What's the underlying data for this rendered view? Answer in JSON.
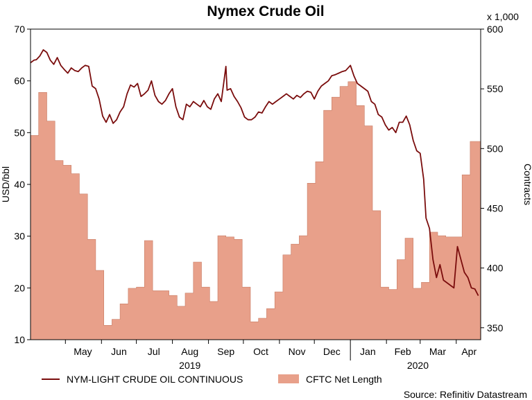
{
  "chart_data": {
    "type": "line+area",
    "title": "Nymex Crude Oil",
    "source": "Source: Refinitiv Datastream",
    "left_axis": {
      "label": "USD/bbl",
      "ylim": [
        10,
        70
      ],
      "ticks": [
        10,
        20,
        30,
        40,
        50,
        60,
        70
      ]
    },
    "right_axis": {
      "label": "Contracts",
      "multiplier_note": "x 1,000",
      "ylim": [
        340,
        600
      ],
      "ticks": [
        350,
        400,
        450,
        500,
        550,
        600
      ]
    },
    "x_axis": {
      "start": "2019-04-01",
      "end": "2020-04-22",
      "month_labels": [
        {
          "label": "May",
          "date": "2019-05-16"
        },
        {
          "label": "Jun",
          "date": "2019-06-16"
        },
        {
          "label": "Jul",
          "date": "2019-07-16"
        },
        {
          "label": "Aug",
          "date": "2019-08-16"
        },
        {
          "label": "Sep",
          "date": "2019-09-16"
        },
        {
          "label": "Oct",
          "date": "2019-10-16"
        },
        {
          "label": "Nov",
          "date": "2019-11-16"
        },
        {
          "label": "Dec",
          "date": "2019-12-16"
        },
        {
          "label": "Jan",
          "date": "2020-01-16"
        },
        {
          "label": "Feb",
          "date": "2020-02-15"
        },
        {
          "label": "Mar",
          "date": "2020-03-16"
        },
        {
          "label": "Apr",
          "date": "2020-04-12"
        }
      ],
      "year_labels": [
        {
          "label": "2019",
          "date": "2019-08-16"
        },
        {
          "label": "2020",
          "date": "2020-02-28"
        }
      ]
    },
    "series": [
      {
        "name": "NYM-LIGHT CRUDE OIL CONTINUOUS",
        "kind": "line",
        "axis": "left",
        "color": "#7a0c0c",
        "x": [
          "2019-04-01",
          "2019-04-04",
          "2019-04-06",
          "2019-04-09",
          "2019-04-12",
          "2019-04-15",
          "2019-04-18",
          "2019-04-21",
          "2019-04-24",
          "2019-04-27",
          "2019-04-30",
          "2019-05-03",
          "2019-05-06",
          "2019-05-09",
          "2019-05-12",
          "2019-05-15",
          "2019-05-18",
          "2019-05-21",
          "2019-05-24",
          "2019-05-27",
          "2019-05-30",
          "2019-06-02",
          "2019-06-05",
          "2019-06-08",
          "2019-06-11",
          "2019-06-14",
          "2019-06-17",
          "2019-06-20",
          "2019-06-23",
          "2019-06-26",
          "2019-06-29",
          "2019-07-02",
          "2019-07-05",
          "2019-07-08",
          "2019-07-11",
          "2019-07-14",
          "2019-07-17",
          "2019-07-20",
          "2019-07-23",
          "2019-07-26",
          "2019-07-29",
          "2019-08-01",
          "2019-08-04",
          "2019-08-07",
          "2019-08-10",
          "2019-08-13",
          "2019-08-16",
          "2019-08-19",
          "2019-08-22",
          "2019-08-25",
          "2019-08-28",
          "2019-08-31",
          "2019-09-03",
          "2019-09-06",
          "2019-09-09",
          "2019-09-12",
          "2019-09-16",
          "2019-09-17",
          "2019-09-20",
          "2019-09-23",
          "2019-09-26",
          "2019-09-29",
          "2019-10-02",
          "2019-10-05",
          "2019-10-08",
          "2019-10-11",
          "2019-10-14",
          "2019-10-17",
          "2019-10-20",
          "2019-10-23",
          "2019-10-26",
          "2019-10-29",
          "2019-11-01",
          "2019-11-04",
          "2019-11-07",
          "2019-11-10",
          "2019-11-13",
          "2019-11-16",
          "2019-11-19",
          "2019-11-22",
          "2019-11-25",
          "2019-11-28",
          "2019-12-01",
          "2019-12-04",
          "2019-12-07",
          "2019-12-10",
          "2019-12-13",
          "2019-12-16",
          "2019-12-19",
          "2019-12-22",
          "2019-12-25",
          "2019-12-28",
          "2020-01-01",
          "2020-01-04",
          "2020-01-07",
          "2020-01-10",
          "2020-01-13",
          "2020-01-16",
          "2020-01-19",
          "2020-01-22",
          "2020-01-25",
          "2020-01-28",
          "2020-01-31",
          "2020-02-03",
          "2020-02-06",
          "2020-02-09",
          "2020-02-12",
          "2020-02-15",
          "2020-02-18",
          "2020-02-21",
          "2020-02-24",
          "2020-02-27",
          "2020-03-01",
          "2020-03-04",
          "2020-03-06",
          "2020-03-09",
          "2020-03-12",
          "2020-03-15",
          "2020-03-18",
          "2020-03-21",
          "2020-03-24",
          "2020-03-27",
          "2020-03-30",
          "2020-04-02",
          "2020-04-05",
          "2020-04-08",
          "2020-04-11",
          "2020-04-14",
          "2020-04-17",
          "2020-04-20"
        ],
        "values": [
          63.5,
          64.0,
          64.1,
          64.8,
          66.0,
          65.5,
          64.0,
          63.2,
          64.5,
          63.0,
          62.2,
          61.5,
          62.5,
          62.0,
          61.8,
          62.5,
          63.0,
          62.8,
          59.0,
          58.5,
          56.5,
          53.2,
          52.0,
          53.5,
          51.8,
          52.5,
          54.0,
          55.0,
          57.5,
          59.2,
          58.8,
          59.5,
          57.0,
          57.5,
          58.2,
          60.0,
          57.2,
          56.0,
          55.5,
          56.2,
          57.5,
          58.5,
          55.0,
          53.0,
          52.5,
          55.5,
          55.0,
          56.0,
          55.5,
          55.0,
          56.2,
          55.0,
          54.5,
          56.5,
          57.5,
          56.0,
          62.8,
          58.2,
          58.5,
          57.0,
          56.0,
          54.8,
          53.0,
          52.5,
          52.5,
          53.0,
          54.0,
          53.8,
          55.0,
          56.0,
          55.5,
          56.0,
          56.5,
          57.0,
          57.5,
          57.0,
          56.5,
          57.2,
          56.8,
          57.5,
          58.0,
          57.8,
          56.5,
          58.0,
          59.0,
          59.5,
          60.0,
          61.0,
          61.2,
          61.5,
          61.8,
          62.0,
          63.0,
          61.0,
          59.5,
          59.0,
          58.5,
          58.0,
          56.0,
          55.5,
          53.5,
          53.0,
          51.5,
          50.5,
          51.0,
          50.0,
          52.0,
          52.0,
          53.2,
          51.5,
          48.5,
          46.5,
          46.0,
          41.0,
          33.5,
          31.5,
          25.5,
          22.0,
          24.5,
          21.5,
          21.0,
          20.5,
          20.0,
          28.0,
          25.5,
          23.0,
          22.0,
          20.0,
          19.8,
          18.5
        ]
      },
      {
        "name": "CFTC Net Length",
        "kind": "area-step",
        "axis": "right",
        "color": "#e8a08a",
        "x": [
          "2019-04-01",
          "2019-04-08",
          "2019-04-15",
          "2019-04-22",
          "2019-04-29",
          "2019-05-06",
          "2019-05-13",
          "2019-05-20",
          "2019-05-27",
          "2019-06-03",
          "2019-06-10",
          "2019-06-17",
          "2019-06-24",
          "2019-07-01",
          "2019-07-08",
          "2019-07-15",
          "2019-07-22",
          "2019-07-29",
          "2019-08-05",
          "2019-08-12",
          "2019-08-19",
          "2019-08-26",
          "2019-09-02",
          "2019-09-09",
          "2019-09-16",
          "2019-09-23",
          "2019-09-30",
          "2019-10-07",
          "2019-10-14",
          "2019-10-21",
          "2019-10-28",
          "2019-11-04",
          "2019-11-11",
          "2019-11-18",
          "2019-11-25",
          "2019-12-02",
          "2019-12-09",
          "2019-12-16",
          "2019-12-23",
          "2019-12-30",
          "2020-01-06",
          "2020-01-13",
          "2020-01-20",
          "2020-01-27",
          "2020-02-03",
          "2020-02-10",
          "2020-02-17",
          "2020-02-24",
          "2020-03-02",
          "2020-03-09",
          "2020-03-16",
          "2020-03-23",
          "2020-03-30",
          "2020-04-06",
          "2020-04-13"
        ],
        "values": [
          511,
          547,
          523,
          490,
          486,
          479,
          462,
          424,
          398,
          352,
          357,
          370,
          383,
          384,
          423,
          381,
          381,
          377,
          368,
          379,
          405,
          384,
          372,
          427,
          426,
          424,
          384,
          355,
          358,
          366,
          380,
          411,
          420,
          427,
          471,
          489,
          532,
          543,
          552,
          556,
          536,
          519,
          448,
          384,
          382,
          407,
          425,
          383,
          388,
          430,
          427,
          426,
          426,
          478,
          506
        ]
      }
    ]
  }
}
